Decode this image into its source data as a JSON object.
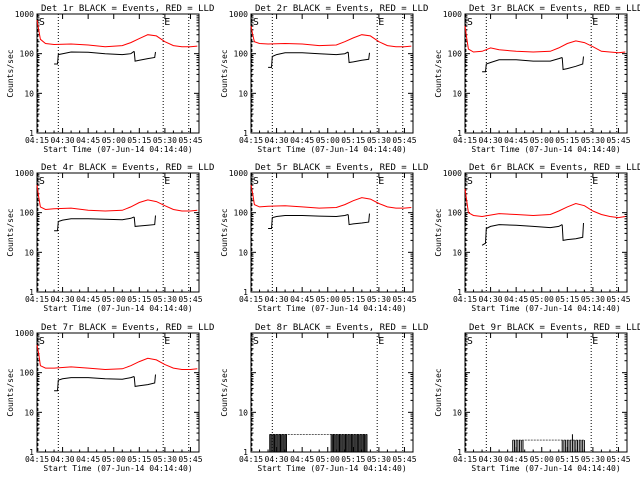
{
  "figure": {
    "xlabel": "Start Time (07-Jun-14 04:14:40)",
    "ylabel": "Counts/sec",
    "x_ticks": [
      "04:15",
      "04:30",
      "04:45",
      "05:00",
      "05:15",
      "05:30",
      "05:45"
    ],
    "y_ticks_log": [
      "1",
      "10",
      "100",
      "1000"
    ],
    "y_ticks_short": [
      "1",
      "10"
    ],
    "marker_s": "S",
    "marker_e": "E"
  },
  "chart_data": [
    {
      "type": "line",
      "title": "Det 1r BLACK = Events, RED = LLD",
      "yscale": "log",
      "ylim": [
        1,
        1000
      ],
      "xlim_minutes": [
        0,
        95
      ],
      "start_marker": 0.5,
      "end_marker": 74,
      "series": [
        {
          "name": "RED = LLD",
          "color": "#ff0000",
          "x": [
            0,
            1,
            2,
            5,
            10,
            20,
            30,
            40,
            50,
            55,
            60,
            65,
            70,
            75,
            80,
            85,
            90,
            94
          ],
          "y": [
            700,
            400,
            230,
            180,
            170,
            175,
            165,
            150,
            160,
            190,
            240,
            300,
            280,
            200,
            160,
            150,
            150,
            155
          ]
        },
        {
          "name": "BLACK = Events",
          "color": "#000000",
          "segments": [
            {
              "x": [
                10,
                12,
                12.5,
                15,
                20,
                30,
                40,
                50,
                55,
                57
              ],
              "y": [
                55,
                55,
                95,
                100,
                110,
                108,
                100,
                95,
                100,
                115
              ]
            },
            {
              "x": [
                57,
                57.5,
                60,
                65,
                69,
                69.5
              ],
              "y": [
                115,
                65,
                68,
                75,
                80,
                110
              ]
            }
          ]
        }
      ]
    },
    {
      "type": "line",
      "title": "Det 2r BLACK = Events, RED = LLD",
      "yscale": "log",
      "ylim": [
        1,
        1000
      ],
      "xlim_minutes": [
        0,
        95
      ],
      "start_marker": 0.5,
      "end_marker": 74,
      "series": [
        {
          "name": "RED = LLD",
          "color": "#ff0000",
          "x": [
            0,
            1,
            2,
            5,
            10,
            20,
            30,
            40,
            50,
            55,
            60,
            65,
            70,
            75,
            80,
            85,
            90,
            94
          ],
          "y": [
            500,
            300,
            200,
            180,
            175,
            180,
            175,
            160,
            165,
            200,
            250,
            300,
            280,
            200,
            160,
            150,
            150,
            155
          ]
        },
        {
          "name": "BLACK = Events",
          "color": "#000000",
          "segments": [
            {
              "x": [
                10,
                12,
                12.5,
                15,
                20,
                30,
                40,
                50,
                55,
                57
              ],
              "y": [
                45,
                45,
                85,
                95,
                105,
                105,
                100,
                95,
                100,
                110
              ]
            },
            {
              "x": [
                57,
                57.5,
                60,
                65,
                69,
                69.5
              ],
              "y": [
                110,
                60,
                62,
                68,
                72,
                105
              ]
            }
          ]
        }
      ]
    },
    {
      "type": "line",
      "title": "Det 3r BLACK = Events, RED = LLD",
      "yscale": "log",
      "ylim": [
        1,
        1000
      ],
      "xlim_minutes": [
        0,
        95
      ],
      "start_marker": 0.5,
      "end_marker": 74,
      "series": [
        {
          "name": "RED = LLD",
          "color": "#ff0000",
          "x": [
            0,
            1,
            2,
            5,
            10,
            15,
            20,
            30,
            40,
            50,
            55,
            60,
            65,
            70,
            75,
            80,
            85,
            90,
            94
          ],
          "y": [
            500,
            250,
            130,
            110,
            115,
            140,
            125,
            115,
            110,
            115,
            140,
            180,
            210,
            190,
            150,
            115,
            110,
            105,
            110
          ]
        },
        {
          "name": "BLACK = Events",
          "color": "#000000",
          "segments": [
            {
              "x": [
                10,
                12,
                12.5,
                15,
                20,
                30,
                40,
                50,
                55,
                57
              ],
              "y": [
                35,
                35,
                55,
                60,
                70,
                70,
                65,
                65,
                75,
                80
              ]
            },
            {
              "x": [
                57,
                57.5,
                60,
                65,
                69,
                69.5
              ],
              "y": [
                80,
                40,
                42,
                48,
                55,
                85
              ]
            }
          ]
        }
      ]
    },
    {
      "type": "line",
      "title": "Det 4r BLACK = Events, RED = LLD",
      "yscale": "log",
      "ylim": [
        1,
        1000
      ],
      "xlim_minutes": [
        0,
        95
      ],
      "start_marker": 0.5,
      "end_marker": 74,
      "series": [
        {
          "name": "RED = LLD",
          "color": "#ff0000",
          "x": [
            0,
            1,
            2,
            5,
            10,
            20,
            30,
            40,
            50,
            55,
            60,
            65,
            70,
            75,
            80,
            85,
            90,
            94
          ],
          "y": [
            500,
            250,
            140,
            120,
            125,
            130,
            115,
            110,
            115,
            140,
            180,
            210,
            190,
            150,
            120,
            110,
            110,
            115
          ]
        },
        {
          "name": "BLACK = Events",
          "color": "#000000",
          "segments": [
            {
              "x": [
                10,
                12,
                12.5,
                15,
                20,
                30,
                40,
                50,
                55,
                57
              ],
              "y": [
                35,
                35,
                60,
                65,
                70,
                70,
                68,
                66,
                72,
                78
              ]
            },
            {
              "x": [
                57,
                57.5,
                60,
                65,
                69,
                69.5
              ],
              "y": [
                78,
                45,
                46,
                48,
                50,
                85
              ]
            }
          ]
        }
      ]
    },
    {
      "type": "line",
      "title": "Det 5r BLACK = Events, RED = LLD",
      "yscale": "log",
      "ylim": [
        1,
        1000
      ],
      "xlim_minutes": [
        0,
        95
      ],
      "start_marker": 0.5,
      "end_marker": 74,
      "series": [
        {
          "name": "RED = LLD",
          "color": "#ff0000",
          "x": [
            0,
            1,
            2,
            5,
            10,
            20,
            30,
            40,
            50,
            55,
            60,
            65,
            70,
            75,
            80,
            85,
            90,
            94
          ],
          "y": [
            500,
            300,
            160,
            140,
            145,
            150,
            140,
            130,
            135,
            160,
            200,
            240,
            220,
            170,
            140,
            130,
            130,
            135
          ]
        },
        {
          "name": "BLACK = Events",
          "color": "#000000",
          "segments": [
            {
              "x": [
                10,
                12,
                12.5,
                15,
                20,
                30,
                40,
                50,
                55,
                57
              ],
              "y": [
                40,
                40,
                75,
                80,
                85,
                85,
                82,
                80,
                85,
                90
              ]
            },
            {
              "x": [
                57,
                57.5,
                60,
                65,
                69,
                69.5
              ],
              "y": [
                90,
                50,
                52,
                55,
                58,
                95
              ]
            }
          ]
        }
      ]
    },
    {
      "type": "line",
      "title": "Det 6r BLACK = Events, RED = LLD",
      "yscale": "log",
      "ylim": [
        1,
        1000
      ],
      "xlim_minutes": [
        0,
        95
      ],
      "start_marker": 0.5,
      "end_marker": 74,
      "series": [
        {
          "name": "RED = LLD",
          "color": "#ff0000",
          "x": [
            0,
            1,
            2,
            5,
            10,
            20,
            30,
            40,
            50,
            55,
            60,
            65,
            70,
            75,
            80,
            85,
            90,
            94
          ],
          "y": [
            400,
            200,
            100,
            85,
            80,
            95,
            90,
            85,
            90,
            110,
            140,
            170,
            150,
            110,
            90,
            80,
            75,
            80
          ]
        },
        {
          "name": "BLACK = Events",
          "color": "#000000",
          "segments": [
            {
              "x": [
                10,
                12,
                12.5,
                15,
                20,
                30,
                40,
                50,
                55,
                57
              ],
              "y": [
                15,
                17,
                40,
                45,
                50,
                48,
                45,
                42,
                45,
                50
              ]
            },
            {
              "x": [
                57,
                57.5,
                60,
                65,
                69,
                69.5
              ],
              "y": [
                50,
                20,
                21,
                22,
                24,
                55
              ]
            }
          ]
        }
      ]
    },
    {
      "type": "line",
      "title": "Det 7r BLACK = Events, RED = LLD",
      "yscale": "log",
      "ylim": [
        1,
        1000
      ],
      "xlim_minutes": [
        0,
        95
      ],
      "start_marker": 0.5,
      "end_marker": 74,
      "series": [
        {
          "name": "RED = LLD",
          "color": "#ff0000",
          "x": [
            0,
            1,
            2,
            5,
            10,
            20,
            30,
            40,
            50,
            55,
            60,
            65,
            70,
            75,
            80,
            85,
            90,
            94
          ],
          "y": [
            500,
            300,
            150,
            130,
            130,
            140,
            130,
            120,
            125,
            150,
            190,
            230,
            210,
            160,
            130,
            120,
            120,
            125
          ]
        },
        {
          "name": "BLACK = Events",
          "color": "#000000",
          "segments": [
            {
              "x": [
                10,
                12,
                12.5,
                15,
                20,
                30,
                40,
                50,
                55,
                57
              ],
              "y": [
                35,
                35,
                65,
                70,
                75,
                75,
                70,
                68,
                75,
                80
              ]
            },
            {
              "x": [
                57,
                57.5,
                60,
                65,
                69,
                69.5
              ],
              "y": [
                80,
                45,
                47,
                50,
                55,
                90
              ]
            }
          ]
        }
      ]
    },
    {
      "type": "line",
      "title": "Det 8r BLACK = Events, RED = LLD",
      "yscale": "log",
      "ylim": [
        1,
        1000
      ],
      "xlim_minutes": [
        0,
        95
      ],
      "start_marker": 0.5,
      "end_marker": 74,
      "y_tick_set": "short",
      "spikes": {
        "color": "#000000",
        "level": 2.8,
        "x": [
          11,
          11.7,
          12.4,
          13.1,
          13.8,
          14.5,
          15.2,
          15.9,
          16.6,
          17.3,
          18,
          18.7,
          19.4,
          20.1,
          20.8,
          47,
          47.7,
          48.4,
          49.1,
          49.8,
          50.5,
          51.2,
          51.9,
          52.6,
          53.3,
          54,
          54.7,
          55.4,
          56.1,
          56.8,
          57.5,
          58.2,
          58.9,
          59.6,
          60.3,
          61,
          61.7,
          62.4,
          63.1,
          63.8,
          64.5,
          65.2,
          65.9,
          66.6,
          67.3,
          68
        ]
      }
    },
    {
      "type": "line",
      "title": "Det 9r BLACK = Events, RED = LLD",
      "yscale": "log",
      "ylim": [
        1,
        1000
      ],
      "xlim_minutes": [
        0,
        95
      ],
      "start_marker": 0.5,
      "end_marker": 74,
      "y_tick_set": "short",
      "spikes": {
        "color": "#000000",
        "level": 2.0,
        "x": [
          28,
          29,
          30,
          31,
          32,
          33,
          34,
          57,
          58,
          59,
          60,
          61,
          62,
          63,
          64,
          65,
          66,
          67,
          68,
          69,
          70
        ],
        "tall_x": 63,
        "tall_level": 2.8
      }
    }
  ]
}
